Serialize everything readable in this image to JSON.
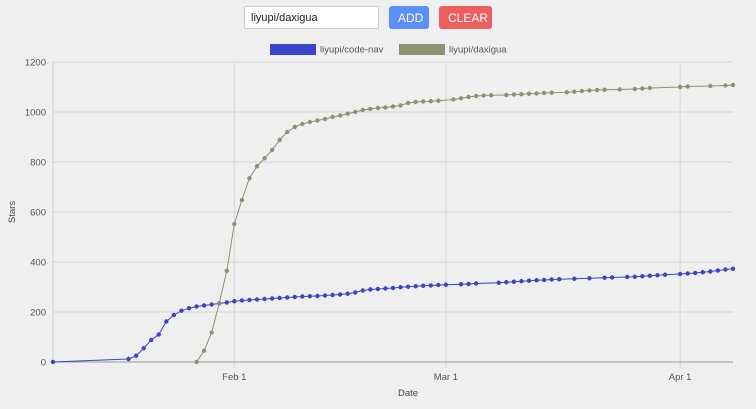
{
  "controls": {
    "repo_value": "liyupi/daxigua",
    "add_label": "ADD",
    "clear_label": "CLEAR"
  },
  "colors": {
    "add_button": "#5b8ff9",
    "clear_button": "#ec5f5f",
    "series_code_nav": "#3946c9",
    "series_daxigua": "#8a9470",
    "grid": "#d6d6d6"
  },
  "chart_data": {
    "type": "line",
    "xlabel": "Date",
    "ylabel": "Stars",
    "ylim": [
      0,
      1200
    ],
    "yticks": [
      0,
      200,
      400,
      600,
      800,
      1000,
      1200
    ],
    "xlim": [
      "2021-01-08",
      "2021-04-08"
    ],
    "xticks": [
      {
        "date": "2021-02-01",
        "label": "Feb 1"
      },
      {
        "date": "2021-03-01",
        "label": "Mar 1"
      },
      {
        "date": "2021-04-01",
        "label": "Apr 1"
      }
    ],
    "grid": true,
    "legend_position": "top-center",
    "series": [
      {
        "name": "liyupi/code-nav",
        "color": "#3946c9",
        "points": [
          [
            "2021-01-08",
            0
          ],
          [
            "2021-01-18",
            12
          ],
          [
            "2021-01-19",
            25
          ],
          [
            "2021-01-20",
            55
          ],
          [
            "2021-01-21",
            88
          ],
          [
            "2021-01-22",
            110
          ],
          [
            "2021-01-23",
            162
          ],
          [
            "2021-01-24",
            188
          ],
          [
            "2021-01-25",
            205
          ],
          [
            "2021-01-26",
            215
          ],
          [
            "2021-01-27",
            222
          ],
          [
            "2021-01-28",
            226
          ],
          [
            "2021-01-29",
            230
          ],
          [
            "2021-01-30",
            234
          ],
          [
            "2021-01-31",
            238
          ],
          [
            "2021-02-01",
            243
          ],
          [
            "2021-02-02",
            246
          ],
          [
            "2021-02-03",
            248
          ],
          [
            "2021-02-04",
            250
          ],
          [
            "2021-02-05",
            252
          ],
          [
            "2021-02-06",
            254
          ],
          [
            "2021-02-07",
            256
          ],
          [
            "2021-02-08",
            258
          ],
          [
            "2021-02-09",
            260
          ],
          [
            "2021-02-10",
            262
          ],
          [
            "2021-02-11",
            263
          ],
          [
            "2021-02-12",
            264
          ],
          [
            "2021-02-13",
            266
          ],
          [
            "2021-02-14",
            268
          ],
          [
            "2021-02-15",
            270
          ],
          [
            "2021-02-16",
            273
          ],
          [
            "2021-02-17",
            278
          ],
          [
            "2021-02-18",
            286
          ],
          [
            "2021-02-19",
            290
          ],
          [
            "2021-02-20",
            292
          ],
          [
            "2021-02-21",
            294
          ],
          [
            "2021-02-22",
            296
          ],
          [
            "2021-02-23",
            299
          ],
          [
            "2021-02-24",
            301
          ],
          [
            "2021-02-25",
            303
          ],
          [
            "2021-02-26",
            305
          ],
          [
            "2021-02-27",
            306
          ],
          [
            "2021-02-28",
            308
          ],
          [
            "2021-03-01",
            309
          ],
          [
            "2021-03-03",
            311
          ],
          [
            "2021-03-04",
            312
          ],
          [
            "2021-03-05",
            314
          ],
          [
            "2021-03-08",
            317
          ],
          [
            "2021-03-09",
            319
          ],
          [
            "2021-03-10",
            321
          ],
          [
            "2021-03-11",
            323
          ],
          [
            "2021-03-12",
            325
          ],
          [
            "2021-03-13",
            327
          ],
          [
            "2021-03-14",
            328
          ],
          [
            "2021-03-15",
            330
          ],
          [
            "2021-03-16",
            331
          ],
          [
            "2021-03-18",
            333
          ],
          [
            "2021-03-20",
            335
          ],
          [
            "2021-03-22",
            337
          ],
          [
            "2021-03-23",
            338
          ],
          [
            "2021-03-25",
            340
          ],
          [
            "2021-03-26",
            341
          ],
          [
            "2021-03-27",
            343
          ],
          [
            "2021-03-28",
            345
          ],
          [
            "2021-03-29",
            347
          ],
          [
            "2021-03-30",
            349
          ],
          [
            "2021-04-01",
            352
          ],
          [
            "2021-04-02",
            354
          ],
          [
            "2021-04-03",
            356
          ],
          [
            "2021-04-04",
            359
          ],
          [
            "2021-04-05",
            362
          ],
          [
            "2021-04-06",
            366
          ],
          [
            "2021-04-07",
            370
          ],
          [
            "2021-04-08",
            373
          ]
        ]
      },
      {
        "name": "liyupi/daxigua",
        "color": "#8a9470",
        "points": [
          [
            "2021-01-27",
            0
          ],
          [
            "2021-01-28",
            45
          ],
          [
            "2021-01-29",
            118
          ],
          [
            "2021-01-30",
            235
          ],
          [
            "2021-01-31",
            365
          ],
          [
            "2021-02-01",
            552
          ],
          [
            "2021-02-02",
            648
          ],
          [
            "2021-02-03",
            735
          ],
          [
            "2021-02-04",
            783
          ],
          [
            "2021-02-05",
            815
          ],
          [
            "2021-02-06",
            848
          ],
          [
            "2021-02-07",
            888
          ],
          [
            "2021-02-08",
            920
          ],
          [
            "2021-02-09",
            940
          ],
          [
            "2021-02-10",
            952
          ],
          [
            "2021-02-11",
            960
          ],
          [
            "2021-02-12",
            966
          ],
          [
            "2021-02-13",
            972
          ],
          [
            "2021-02-14",
            980
          ],
          [
            "2021-02-15",
            986
          ],
          [
            "2021-02-16",
            993
          ],
          [
            "2021-02-17",
            1000
          ],
          [
            "2021-02-18",
            1008
          ],
          [
            "2021-02-19",
            1012
          ],
          [
            "2021-02-20",
            1016
          ],
          [
            "2021-02-21",
            1018
          ],
          [
            "2021-02-22",
            1022
          ],
          [
            "2021-02-23",
            1026
          ],
          [
            "2021-02-24",
            1036
          ],
          [
            "2021-02-25",
            1040
          ],
          [
            "2021-02-26",
            1042
          ],
          [
            "2021-02-27",
            1043
          ],
          [
            "2021-02-28",
            1045
          ],
          [
            "2021-03-02",
            1050
          ],
          [
            "2021-03-03",
            1055
          ],
          [
            "2021-03-04",
            1060
          ],
          [
            "2021-03-05",
            1064
          ],
          [
            "2021-03-06",
            1066
          ],
          [
            "2021-03-07",
            1067
          ],
          [
            "2021-03-09",
            1068
          ],
          [
            "2021-03-10",
            1070
          ],
          [
            "2021-03-11",
            1071
          ],
          [
            "2021-03-12",
            1073
          ],
          [
            "2021-03-13",
            1074
          ],
          [
            "2021-03-14",
            1076
          ],
          [
            "2021-03-15",
            1077
          ],
          [
            "2021-03-17",
            1079
          ],
          [
            "2021-03-18",
            1081
          ],
          [
            "2021-03-19",
            1084
          ],
          [
            "2021-03-20",
            1086
          ],
          [
            "2021-03-21",
            1088
          ],
          [
            "2021-03-22",
            1089
          ],
          [
            "2021-03-24",
            1090
          ],
          [
            "2021-03-26",
            1092
          ],
          [
            "2021-03-27",
            1094
          ],
          [
            "2021-03-28",
            1096
          ],
          [
            "2021-04-01",
            1100
          ],
          [
            "2021-04-02",
            1102
          ],
          [
            "2021-04-05",
            1104
          ],
          [
            "2021-04-07",
            1106
          ],
          [
            "2021-04-08",
            1108
          ]
        ]
      }
    ]
  }
}
